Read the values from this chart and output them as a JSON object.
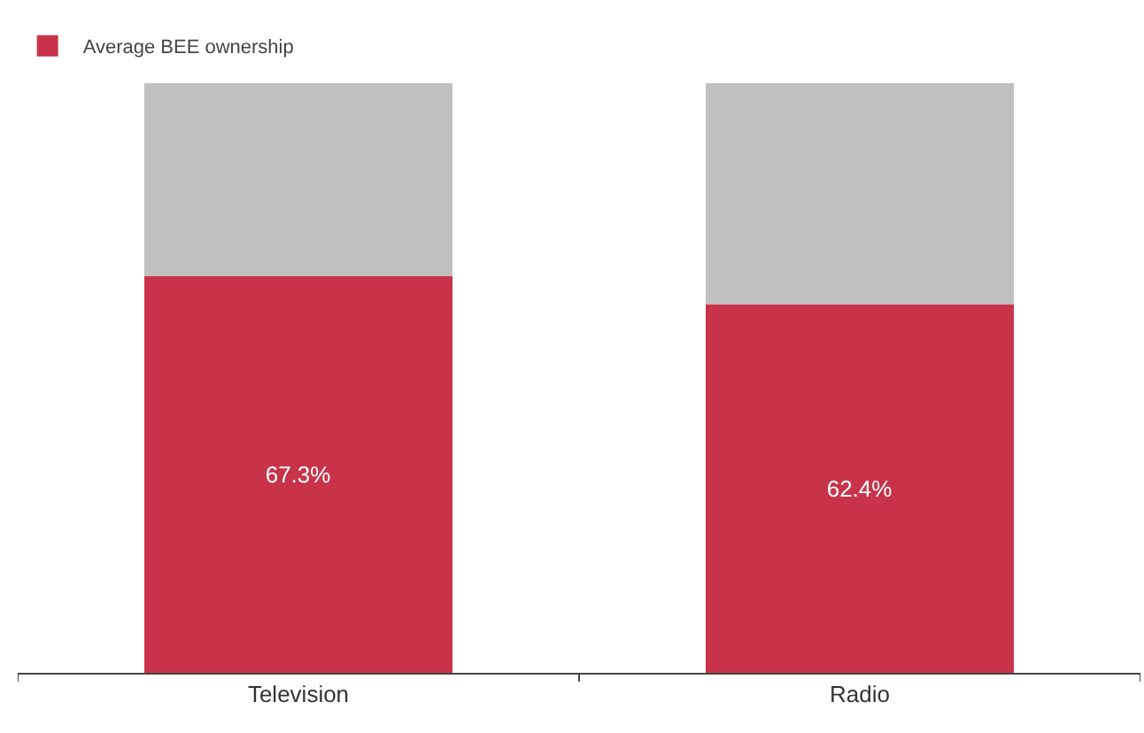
{
  "chart_data": {
    "type": "bar",
    "stacked": true,
    "categories": [
      "Television",
      "Radio"
    ],
    "series": [
      {
        "name": "Average BEE ownership",
        "color": "#c8334a",
        "values": [
          67.3,
          62.4
        ],
        "value_labels": [
          "67.3%",
          "62.4%"
        ]
      },
      {
        "color": "#c0c0c0",
        "values": [
          32.7,
          37.6
        ]
      }
    ],
    "ylim": [
      0,
      100
    ],
    "tick_labels": "x",
    "legend": "top left"
  }
}
